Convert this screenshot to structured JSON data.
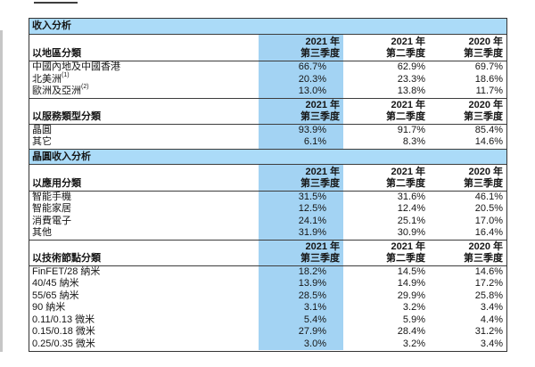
{
  "table": {
    "columns": [
      {
        "line1": "2021 年",
        "line2": "第三季度"
      },
      {
        "line1": "2021 年",
        "line2": "第二季度"
      },
      {
        "line1": "2020 年",
        "line2": "第三季度"
      }
    ],
    "sections": [
      {
        "title": "收入分析",
        "blocks": [
          {
            "label": "以地區分類",
            "rows": [
              {
                "label": "中國內地及中國香港",
                "sup": "",
                "values": [
                  "66.7%",
                  "62.9%",
                  "69.7%"
                ]
              },
              {
                "label": "北美洲",
                "sup": "(1)",
                "values": [
                  "20.3%",
                  "23.3%",
                  "18.6%"
                ]
              },
              {
                "label": "歐洲及亞洲",
                "sup": "(2)",
                "values": [
                  "13.0%",
                  "13.8%",
                  "11.7%"
                ]
              }
            ]
          },
          {
            "label": "以服務類型分類",
            "rows": [
              {
                "label": "晶圓",
                "sup": "",
                "values": [
                  "93.9%",
                  "91.7%",
                  "85.4%"
                ]
              },
              {
                "label": "其它",
                "sup": "",
                "values": [
                  "6.1%",
                  "8.3%",
                  "14.6%"
                ]
              }
            ]
          }
        ]
      },
      {
        "title": "晶圓收入分析",
        "blocks": [
          {
            "label": "以應用分類",
            "rows": [
              {
                "label": "智能手機",
                "sup": "",
                "values": [
                  "31.5%",
                  "31.6%",
                  "46.1%"
                ]
              },
              {
                "label": "智能家居",
                "sup": "",
                "values": [
                  "12.5%",
                  "12.4%",
                  "20.5%"
                ]
              },
              {
                "label": "消費電子",
                "sup": "",
                "values": [
                  "24.1%",
                  "25.1%",
                  "17.0%"
                ]
              },
              {
                "label": "其他",
                "sup": "",
                "values": [
                  "31.9%",
                  "30.9%",
                  "16.4%"
                ]
              }
            ]
          },
          {
            "label": "以技術節點分類",
            "rows": [
              {
                "label": "FinFET/28 納米",
                "sup": "",
                "values": [
                  "18.2%",
                  "14.5%",
                  "14.6%"
                ]
              },
              {
                "label": "40/45 納米",
                "sup": "",
                "values": [
                  "13.9%",
                  "14.9%",
                  "17.2%"
                ]
              },
              {
                "label": "55/65 納米",
                "sup": "",
                "values": [
                  "28.5%",
                  "29.9%",
                  "25.8%"
                ]
              },
              {
                "label": "90 納米",
                "sup": "",
                "values": [
                  "3.1%",
                  "3.2%",
                  "3.4%"
                ]
              },
              {
                "label": "0.11/0.13 微米",
                "sup": "",
                "values": [
                  "5.4%",
                  "5.9%",
                  "4.4%"
                ]
              },
              {
                "label": "0.15/0.18 微米",
                "sup": "",
                "values": [
                  "27.9%",
                  "28.4%",
                  "31.2%"
                ]
              },
              {
                "label": "0.25/0.35 微米",
                "sup": "",
                "values": [
                  "3.0%",
                  "3.2%",
                  "3.4%"
                ]
              }
            ]
          }
        ]
      }
    ],
    "colors": {
      "band_blue": "#abdbf8",
      "column_blue": "#a3d3f3",
      "border": "#3d3d3d",
      "text": "#161616"
    }
  }
}
